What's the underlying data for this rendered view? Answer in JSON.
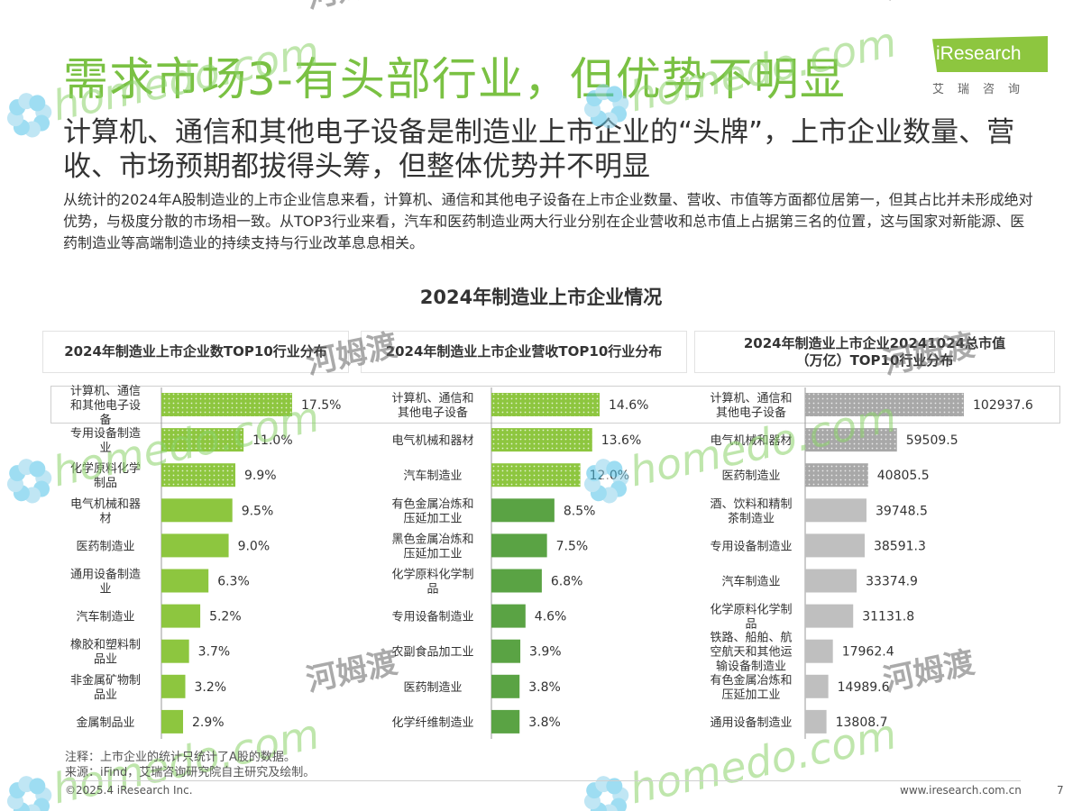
{
  "header": {
    "title": "需求市场3-有头部行业，但优势不明显",
    "subtitle": "计算机、通信和其他电子设备是制造业上市企业的“头牌”，上市企业数量、营收、市场预期都拔得头筹，但整体优势并不明显",
    "body": "从统计的2024年A股制造业的上市企业信息来看，计算机、通信和其他电子设备在上市企业数量、营收、市值等方面都位居第一，但其占比并未形成绝对优势，与极度分散的市场相一致。从TOP3行业来看，汽车和医药制造业两大行业分别在企业营收和总市值上占据第三名的位置，这与国家对新能源、医药制造业等高端制造业的持续支持与行业改革息息相关。"
  },
  "logo": {
    "text": "iResearch",
    "cn": "艾瑞咨询"
  },
  "watermark": {
    "brand": "homedo.com",
    "cn": "河姆渡"
  },
  "colors": {
    "accent": "#7ac143",
    "bar_light": "#8dc63f",
    "bar_dark": "#5aa344",
    "bar_gray": "#bfbfbf",
    "dot_gray": "#a8a8a8"
  },
  "chart_title": "2024年制造业上市企业情况",
  "chart_data": [
    {
      "type": "bar",
      "orientation": "horizontal",
      "title": "2024年制造业上市企业数TOP10行业分布",
      "categories": [
        "计算机、通信和其他电子设备",
        "专用设备制造业",
        "化学原料化学制品",
        "电气机械和器材",
        "医药制造业",
        "通用设备制造业",
        "汽车制造业",
        "橡胶和塑料制品业",
        "非金属矿物制品业",
        "金属制品业"
      ],
      "values": [
        17.5,
        11.0,
        9.9,
        9.5,
        9.0,
        6.3,
        5.2,
        3.7,
        3.2,
        2.9
      ],
      "labels": [
        "17.5%",
        "11.0%",
        "9.9%",
        "9.5%",
        "9.0%",
        "6.3%",
        "5.2%",
        "3.7%",
        "3.2%",
        "2.9%"
      ],
      "unit": "%",
      "highlight_top": 3
    },
    {
      "type": "bar",
      "orientation": "horizontal",
      "title": "2024年制造业上市企业营收TOP10行业分布",
      "categories": [
        "计算机、通信和其他电子设备",
        "电气机械和器材",
        "汽车制造业",
        "有色金属冶炼和压延加工业",
        "黑色金属冶炼和压延加工业",
        "化学原料化学制品",
        "专用设备制造业",
        "农副食品加工业",
        "医药制造业",
        "化学纤维制造业"
      ],
      "values": [
        14.6,
        13.6,
        12.0,
        8.5,
        7.5,
        6.8,
        4.6,
        3.9,
        3.8,
        3.8
      ],
      "labels": [
        "14.6%",
        "13.6%",
        "12.0%",
        "8.5%",
        "7.5%",
        "6.8%",
        "4.6%",
        "3.9%",
        "3.8%",
        "3.8%"
      ],
      "unit": "%",
      "highlight_top": 3
    },
    {
      "type": "bar",
      "orientation": "horizontal",
      "title": "2024年制造业上市企业20241024总市值（万亿）TOP10行业分布",
      "categories": [
        "计算机、通信和其他电子设备",
        "电气机械和器材",
        "医药制造业",
        "酒、饮料和精制茶制造业",
        "专用设备制造业",
        "汽车制造业",
        "化学原料化学制品",
        "铁路、船舶、航空航天和其他运输设备制造业",
        "有色金属冶炼和压延加工业",
        "通用设备制造业"
      ],
      "values": [
        102937.6,
        59509.5,
        40805.5,
        39748.5,
        38591.3,
        33374.9,
        31131.8,
        17962.4,
        14989.6,
        13808.7
      ],
      "labels": [
        "102937.6",
        "59509.5",
        "40805.5",
        "39748.5",
        "38591.3",
        "33374.9",
        "31131.8",
        "17962.4",
        "14989.6",
        "13808.7"
      ],
      "highlight_top": 3
    }
  ],
  "footer": {
    "note": "注释：上市企业的统计只统计了A股的数据。",
    "source": "来源：iFind，艾瑞咨询研究院自主研究及绘制。",
    "copyright": "©2025.4 iResearch Inc.",
    "website": "www.iresearch.com.cn",
    "page": "7"
  }
}
